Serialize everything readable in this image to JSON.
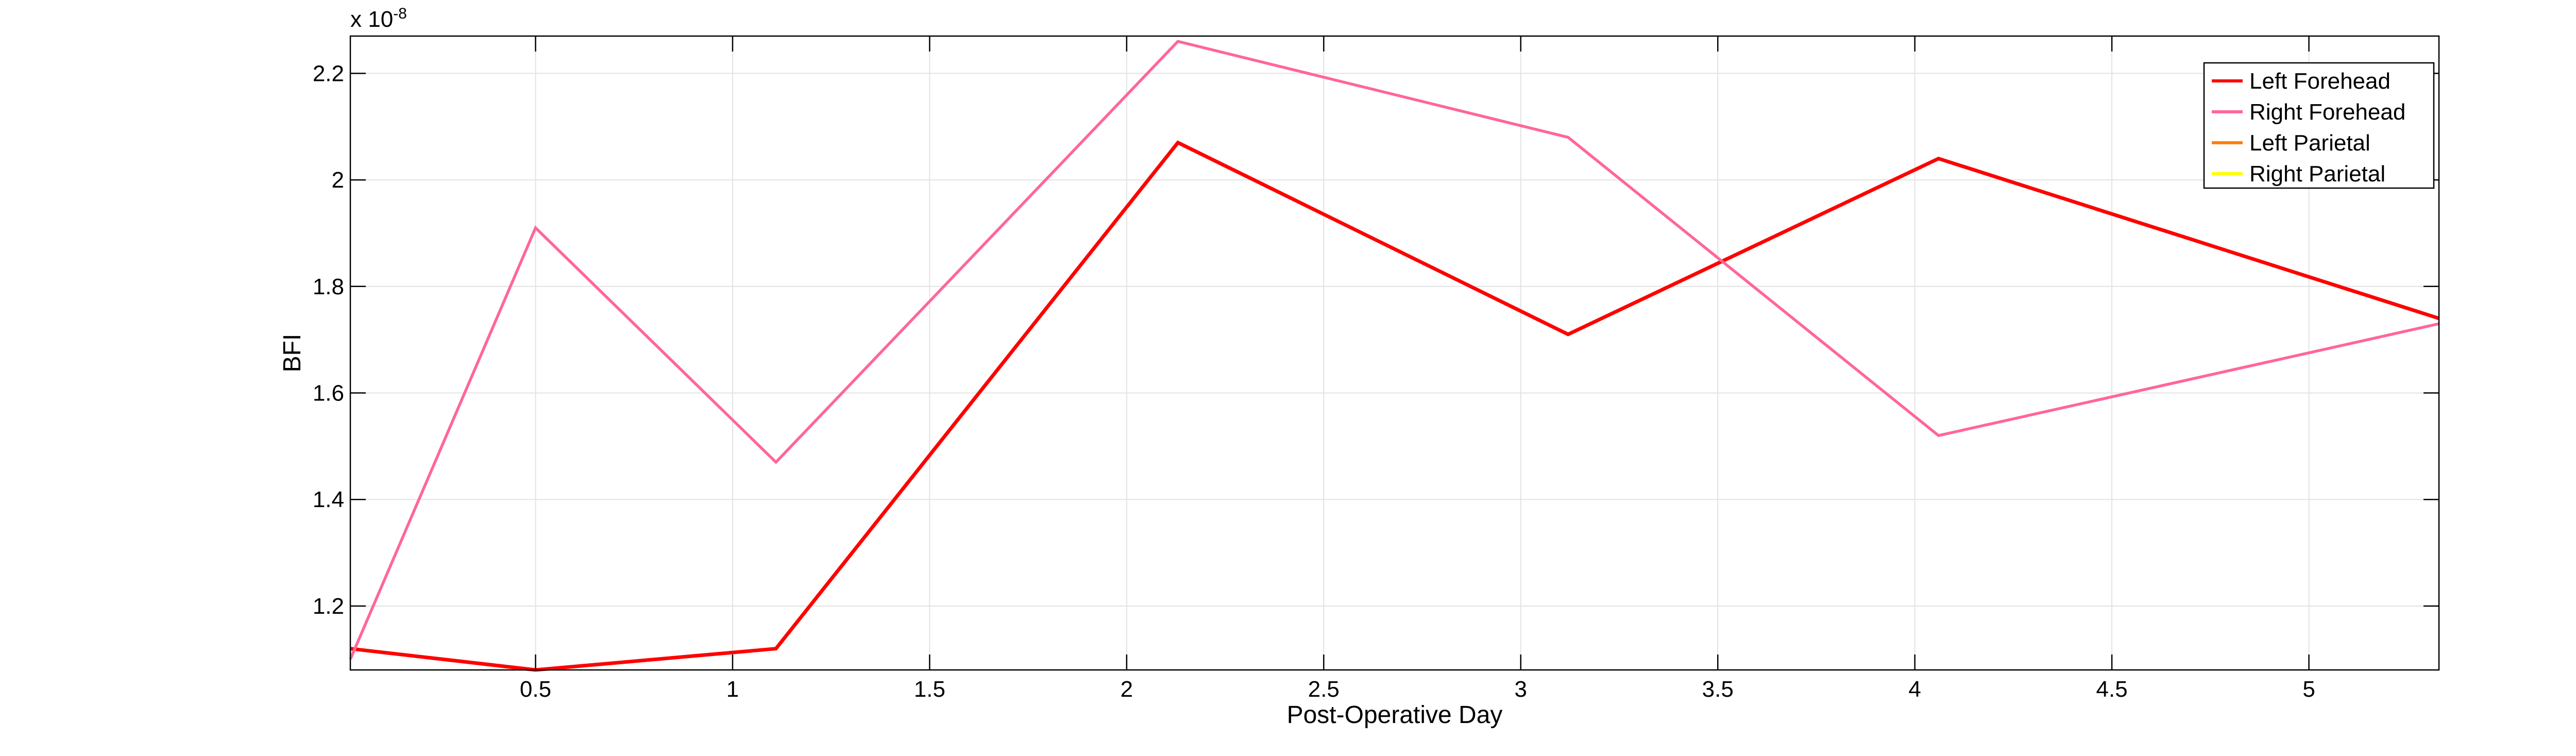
{
  "chart_data": {
    "type": "line",
    "xlabel": "Post-Operative Day",
    "ylabel": "BFI",
    "xlim": [
      0.03,
      5.33
    ],
    "ylim": [
      1.08,
      2.27
    ],
    "y_exponent_label": "x 10",
    "y_exponent_power": "-8",
    "grid": true,
    "legend_position": "top-right",
    "x_ticks": [
      {
        "value": 0.5,
        "label": "0.5"
      },
      {
        "value": 1,
        "label": "1"
      },
      {
        "value": 1.5,
        "label": "1.5"
      },
      {
        "value": 2,
        "label": "2"
      },
      {
        "value": 2.5,
        "label": "2.5"
      },
      {
        "value": 3,
        "label": "3"
      },
      {
        "value": 3.5,
        "label": "3.5"
      },
      {
        "value": 4,
        "label": "4"
      },
      {
        "value": 4.5,
        "label": "4.5"
      },
      {
        "value": 5,
        "label": "5"
      }
    ],
    "y_ticks": [
      {
        "value": 1.2,
        "label": "1.2"
      },
      {
        "value": 1.4,
        "label": "1.4"
      },
      {
        "value": 1.6,
        "label": "1.6"
      },
      {
        "value": 1.8,
        "label": "1.8"
      },
      {
        "value": 2.0,
        "label": "2"
      },
      {
        "value": 2.2,
        "label": "2.2"
      }
    ],
    "series": [
      {
        "name": "Left Forehead",
        "color": "#ff0000",
        "points": [
          [
            0.03,
            1.12
          ],
          [
            0.5,
            1.08
          ],
          [
            1.11,
            1.12
          ],
          [
            2.13,
            2.07
          ],
          [
            3.12,
            1.71
          ],
          [
            4.06,
            2.04
          ],
          [
            5.33,
            1.74
          ]
        ]
      },
      {
        "name": "Right Forehead",
        "color": "#ff6699",
        "points": [
          [
            0.03,
            1.1
          ],
          [
            0.5,
            1.91
          ],
          [
            1.11,
            1.47
          ],
          [
            2.13,
            2.26
          ],
          [
            3.12,
            2.08
          ],
          [
            4.06,
            1.52
          ],
          [
            5.33,
            1.73
          ]
        ]
      },
      {
        "name": "Left Parietal",
        "color": "#ff8000",
        "points": []
      },
      {
        "name": "Right Parietal",
        "color": "#ffff00",
        "points": []
      }
    ]
  }
}
